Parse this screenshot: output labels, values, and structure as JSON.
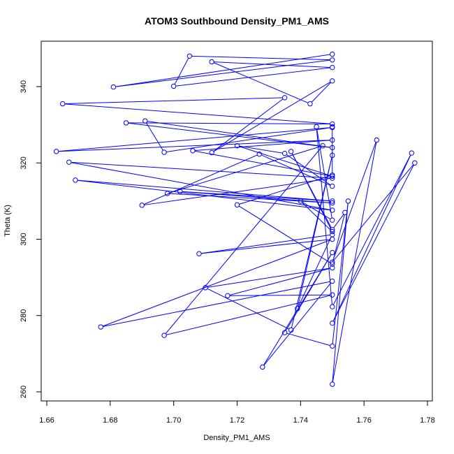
{
  "chart_data": {
    "type": "line",
    "title": "ATOM3 Southbound Density_PM1_AMS",
    "xlabel": "Density_PM1_AMS",
    "ylabel": "Theta (K)",
    "xlim": [
      1.66,
      1.78
    ],
    "ylim": [
      260,
      350
    ],
    "xticks": [
      "1.66",
      "1.68",
      "1.70",
      "1.72",
      "1.74",
      "1.76",
      "1.78"
    ],
    "yticks": [
      "260",
      "280",
      "300",
      "320",
      "340"
    ],
    "grid": false,
    "legend": "none",
    "series": [
      {
        "color": "#0000ff",
        "marker": "open-circle",
        "x": [
          1.75,
          1.681,
          1.75,
          1.705,
          1.7,
          1.75,
          1.712,
          1.743,
          1.75,
          1.712,
          1.735,
          1.665,
          1.75,
          1.685,
          1.75,
          1.691,
          1.697,
          1.75,
          1.663,
          1.75,
          1.706,
          1.75,
          1.72,
          1.735,
          1.75,
          1.727,
          1.69,
          1.75,
          1.667,
          1.75,
          1.669,
          1.75,
          1.702,
          1.75,
          1.698,
          1.747,
          1.697,
          1.75,
          1.717,
          1.75,
          1.71,
          1.737,
          1.75,
          1.739,
          1.75,
          1.708,
          1.75,
          1.677,
          1.75,
          1.728,
          1.75,
          1.735,
          1.75,
          1.755,
          1.75,
          1.764,
          1.75,
          1.776,
          1.75,
          1.775,
          1.75,
          1.745,
          1.75,
          1.74,
          1.75,
          1.737,
          1.75,
          1.754,
          1.75,
          1.72,
          1.75,
          1.75
        ],
        "y": [
          348.5,
          339.9,
          347.0,
          348.0,
          340.1,
          345.0,
          346.5,
          335.5,
          341.5,
          322.7,
          337.1,
          335.5,
          330.2,
          330.5,
          324.0,
          331.0,
          322.8,
          329.3,
          323.0,
          326.0,
          323.2,
          316.5,
          324.5,
          322.5,
          313.9,
          322.3,
          308.9,
          316.0,
          320.2,
          307.6,
          315.5,
          310.0,
          312.5,
          309.5,
          312.0,
          324.5,
          274.8,
          285.4,
          285.2,
          292.5,
          287.3,
          276.2,
          322.0,
          281.8,
          301.2,
          296.2,
          300.0,
          277.0,
          289.0,
          266.5,
          296.5,
          275.5,
          272.0,
          310.0,
          262.0,
          326.0,
          294.0,
          320.0,
          278.0,
          322.6,
          282.3,
          329.5,
          305.0,
          310.0,
          302.0,
          323.0,
          302.5,
          307.0,
          293.5,
          309.0,
          316.8,
          329.5
        ]
      }
    ]
  }
}
